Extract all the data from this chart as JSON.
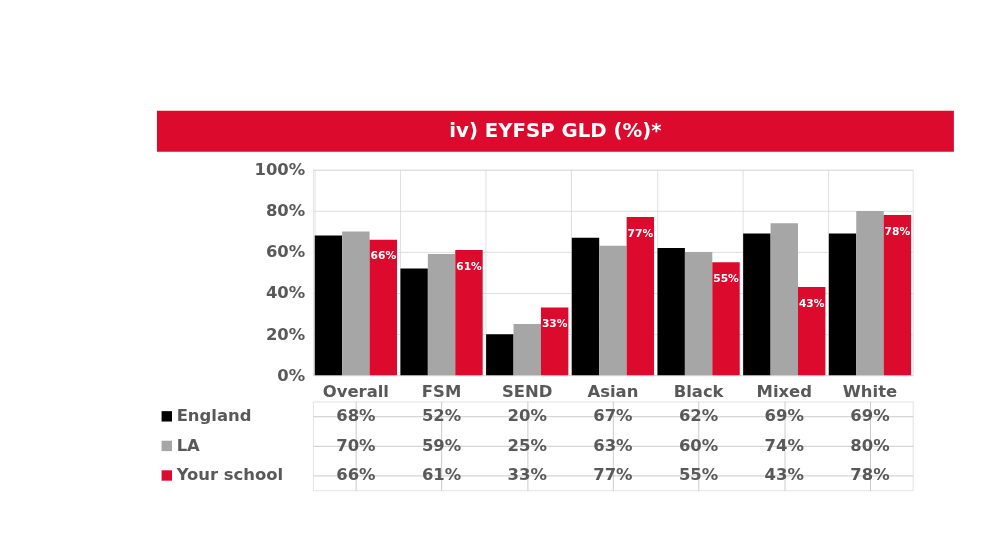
{
  "chart_data": {
    "type": "bar",
    "title": "iv) EYFSP GLD (%)*",
    "categories": [
      "Overall",
      "FSM",
      "SEND",
      "Asian",
      "Black",
      "Mixed",
      "White"
    ],
    "series": [
      {
        "name": "England",
        "color": "#000000",
        "values": [
          68,
          52,
          20,
          67,
          62,
          69,
          69
        ],
        "value_labels": [
          "68%",
          "52%",
          "20%",
          "67%",
          "62%",
          "69%",
          "69%"
        ]
      },
      {
        "name": "LA",
        "color": "#a6a6a6",
        "values": [
          70,
          59,
          25,
          63,
          60,
          74,
          80
        ],
        "value_labels": [
          "70%",
          "59%",
          "25%",
          "63%",
          "60%",
          "74%",
          "80%"
        ]
      },
      {
        "name": "Your school",
        "color": "#dc0a2d",
        "values": [
          66,
          61,
          33,
          77,
          55,
          43,
          78
        ],
        "value_labels": [
          "66%",
          "61%",
          "33%",
          "77%",
          "55%",
          "43%",
          "78%"
        ]
      }
    ],
    "ylim": [
      0,
      100
    ],
    "yticks": [
      {
        "value": 0,
        "label": "0%"
      },
      {
        "value": 20,
        "label": "20%"
      },
      {
        "value": 40,
        "label": "40%"
      },
      {
        "value": 60,
        "label": "60%"
      },
      {
        "value": 80,
        "label": "80%"
      },
      {
        "value": 100,
        "label": "100%"
      }
    ],
    "grid": "y",
    "legend": "bottom left"
  }
}
